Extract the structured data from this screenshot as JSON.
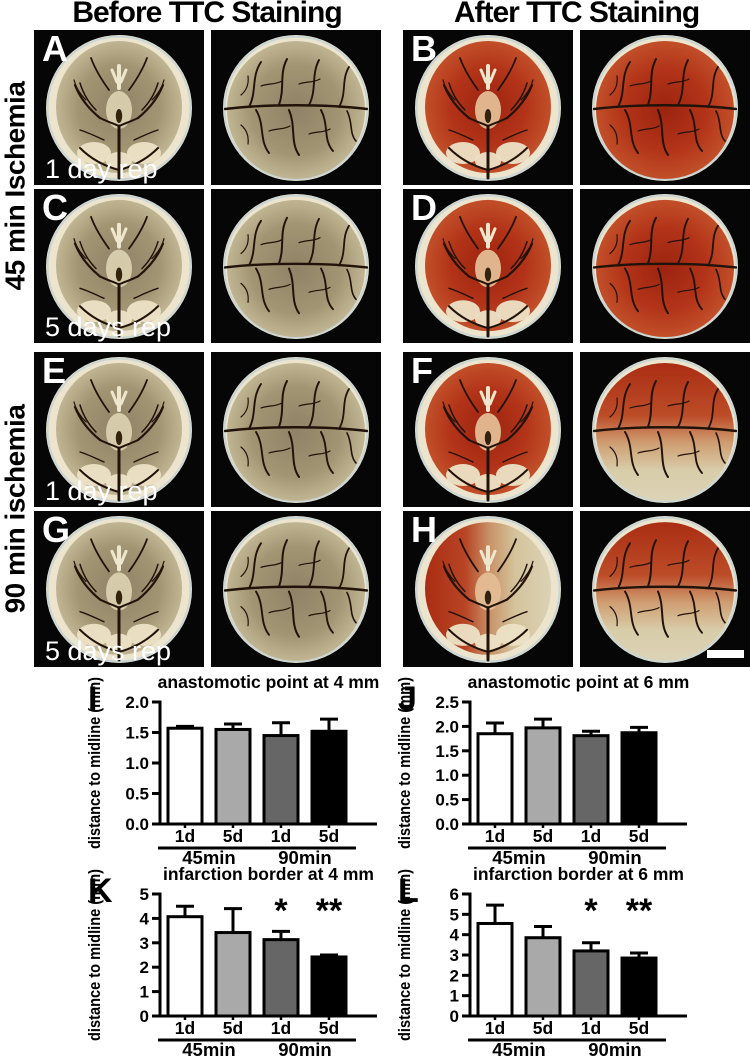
{
  "headers": {
    "before": "Before TTC Staining",
    "after": "After TTC Staining"
  },
  "side_labels": {
    "top": "45 min Ischemia",
    "bottom": "90 min ischemia"
  },
  "panels": {
    "rows": [
      {
        "cells": [
          {
            "letter": "A",
            "caption": "1 day rep",
            "view": "ventral",
            "stain": "pale"
          },
          {
            "view": "dorsal",
            "stain": "pale"
          },
          {
            "letter": "B",
            "view": "ventral",
            "stain": "red"
          },
          {
            "view": "dorsal",
            "stain": "red"
          }
        ]
      },
      {
        "cells": [
          {
            "letter": "C",
            "caption": "5 days rep",
            "view": "ventral",
            "stain": "pale"
          },
          {
            "view": "dorsal",
            "stain": "pale"
          },
          {
            "letter": "D",
            "view": "ventral",
            "stain": "red"
          },
          {
            "view": "dorsal",
            "stain": "red"
          }
        ]
      },
      {
        "cells": [
          {
            "letter": "E",
            "caption": "1 day rep",
            "view": "ventral",
            "stain": "pale"
          },
          {
            "view": "dorsal",
            "stain": "pale"
          },
          {
            "letter": "F",
            "view": "ventral",
            "stain": "red"
          },
          {
            "view": "dorsal",
            "stain": "partial_v"
          }
        ]
      },
      {
        "cells": [
          {
            "letter": "G",
            "caption": "5 days rep",
            "view": "ventral",
            "stain": "pale"
          },
          {
            "view": "dorsal",
            "stain": "pale"
          },
          {
            "letter": "H",
            "view": "ventral",
            "stain": "partial_h"
          },
          {
            "view": "dorsal",
            "stain": "partial_v",
            "scalebar": true
          }
        ]
      }
    ]
  },
  "colors": {
    "background": "#ffffff",
    "panel_bg": "#060606",
    "dish": "#ece4cd",
    "dish_rim_blue": "#a8c8de",
    "unstained_brain": "#a29573",
    "ttc_stained_red": "#b23318",
    "vessel": "#22130a",
    "panel_text": "#ffffff",
    "chart_text": "#000000",
    "bar_fills": [
      "#ffffff",
      "#a9a9a9",
      "#666666",
      "#000000"
    ]
  },
  "chart_data": [
    {
      "letter": "I",
      "type": "bar",
      "title": "anastomotic point at 4 mm",
      "ylabel": "distance to midline (mm)",
      "ylim": [
        0,
        2.0
      ],
      "ytick_labels": [
        "0.0",
        "0.5",
        "1.0",
        "1.5",
        "2.0"
      ],
      "categories": [
        "1d",
        "5d",
        "1d",
        "5d"
      ],
      "group_labels": [
        "45min",
        "90min"
      ],
      "values": [
        1.57,
        1.55,
        1.45,
        1.52
      ],
      "errors": [
        0.03,
        0.09,
        0.21,
        0.2
      ],
      "significance": [
        "",
        "",
        "",
        ""
      ],
      "bar_colors": [
        "#ffffff",
        "#a9a9a9",
        "#666666",
        "#000000"
      ],
      "legend": "none",
      "grid": false
    },
    {
      "letter": "J",
      "type": "bar",
      "title": "anastomotic point at 6 mm",
      "ylabel": "distance to midline (mm)",
      "ylim": [
        0,
        2.5
      ],
      "ytick_labels": [
        "0.0",
        "0.5",
        "1.0",
        "1.5",
        "2.0",
        "2.5"
      ],
      "categories": [
        "1d",
        "5d",
        "1d",
        "5d"
      ],
      "group_labels": [
        "45min",
        "90min"
      ],
      "values": [
        1.85,
        1.97,
        1.81,
        1.87
      ],
      "errors": [
        0.22,
        0.18,
        0.09,
        0.11
      ],
      "significance": [
        "",
        "",
        "",
        ""
      ],
      "bar_colors": [
        "#ffffff",
        "#a9a9a9",
        "#666666",
        "#000000"
      ],
      "legend": "none",
      "grid": false
    },
    {
      "letter": "K",
      "type": "bar",
      "title": "infarction border at 4 mm",
      "ylabel": "distance to midline (mm)",
      "ylim": [
        0,
        5
      ],
      "ytick_labels": [
        "0",
        "1",
        "2",
        "3",
        "4",
        "5"
      ],
      "categories": [
        "1d",
        "5d",
        "1d",
        "5d"
      ],
      "group_labels": [
        "45min",
        "90min"
      ],
      "values": [
        4.07,
        3.42,
        3.13,
        2.42
      ],
      "errors": [
        0.43,
        0.98,
        0.34,
        0.08
      ],
      "significance": [
        "",
        "",
        "*",
        "**"
      ],
      "bar_colors": [
        "#ffffff",
        "#a9a9a9",
        "#666666",
        "#000000"
      ],
      "legend": "none",
      "grid": false
    },
    {
      "letter": "L",
      "type": "bar",
      "title": "infarction border at 6 mm",
      "ylabel": "distance to midline (mm)",
      "ylim": [
        0,
        6
      ],
      "ytick_labels": [
        "0",
        "1",
        "2",
        "3",
        "4",
        "5",
        "6"
      ],
      "categories": [
        "1d",
        "5d",
        "1d",
        "5d"
      ],
      "group_labels": [
        "45min",
        "90min"
      ],
      "values": [
        4.55,
        3.85,
        3.2,
        2.85
      ],
      "errors": [
        0.9,
        0.55,
        0.4,
        0.25
      ],
      "significance": [
        "",
        "",
        "*",
        "**"
      ],
      "bar_colors": [
        "#ffffff",
        "#a9a9a9",
        "#666666",
        "#000000"
      ],
      "legend": "none",
      "grid": false
    }
  ]
}
